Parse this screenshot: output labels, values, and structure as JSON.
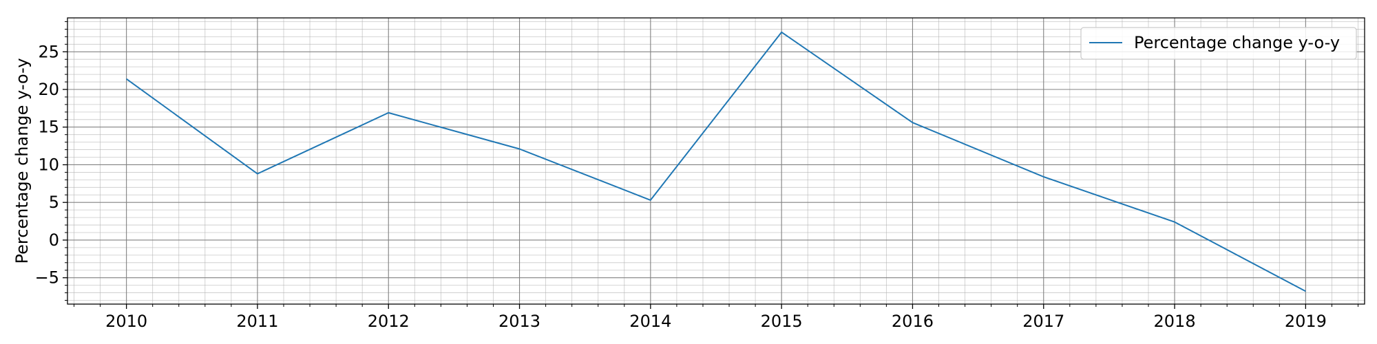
{
  "chart_data": {
    "type": "line",
    "title": "",
    "xlabel": "",
    "ylabel": "Percentage change y-o-y",
    "x": [
      "2010",
      "2011",
      "2012",
      "2013",
      "2014",
      "2015",
      "2016",
      "2017",
      "2018",
      "2019"
    ],
    "series": [
      {
        "name": "Percentage change y-o-y",
        "values": [
          21.4,
          8.8,
          16.9,
          12.1,
          5.3,
          27.6,
          15.6,
          8.4,
          2.4,
          -6.8
        ],
        "color": "#1f77b4"
      }
    ],
    "xlim": [
      2009.55,
      2019.45
    ],
    "ylim": [
      -8.5,
      29.5
    ],
    "yticks": [
      -5,
      0,
      5,
      10,
      15,
      20,
      25
    ],
    "yticklabels": [
      "−5",
      "0",
      "5",
      "10",
      "15",
      "20",
      "25"
    ],
    "grid": "major and minor",
    "legend_position": "top-right"
  }
}
